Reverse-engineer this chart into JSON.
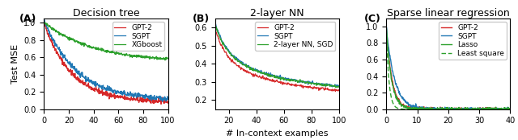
{
  "fig_width": 6.4,
  "fig_height": 1.74,
  "dpi": 100,
  "panel_labels": [
    "(A)",
    "(B)",
    "(C)"
  ],
  "titles": [
    "Decision tree",
    "2-layer NN",
    "Sparse linear regression"
  ],
  "xlabel": "# In-context examples",
  "ylabel": "Test MSE",
  "colors": {
    "gpt2": "#d62728",
    "sgpt": "#1f77b4",
    "xgboost": "#2ca02c",
    "nn_sgd": "#2ca02c",
    "lasso": "#2ca02c",
    "least_square": "#2ca02c"
  },
  "panel_A": {
    "xlim": [
      0,
      100
    ],
    "ylim": [
      0.0,
      1.05
    ],
    "yticks": [
      0.0,
      0.2,
      0.4,
      0.6,
      0.8,
      1.0
    ],
    "xticks": [
      0,
      20,
      40,
      60,
      80,
      100
    ]
  },
  "panel_B": {
    "xlim": [
      10,
      100
    ],
    "ylim": [
      0.15,
      0.65
    ],
    "yticks": [
      0.2,
      0.3,
      0.4,
      0.5,
      0.6
    ],
    "xticks": [
      20,
      40,
      60,
      80,
      100
    ]
  },
  "panel_C": {
    "xlim": [
      0,
      40
    ],
    "ylim": [
      0.0,
      1.1
    ],
    "yticks": [
      0.0,
      0.2,
      0.4,
      0.6,
      0.8,
      1.0
    ],
    "xticks": [
      0,
      10,
      20,
      30,
      40
    ]
  }
}
